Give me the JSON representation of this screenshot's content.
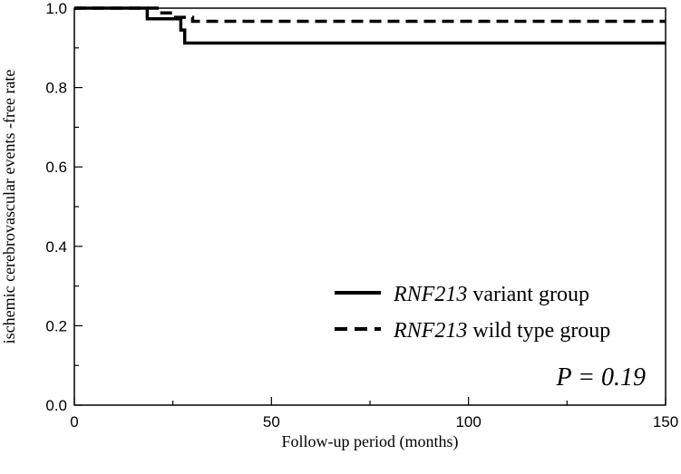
{
  "chart_data": {
    "type": "line",
    "subtype": "kaplan-meier-step",
    "xlabel": "Follow-up period (months)",
    "ylabel": "ischemic cerebrovascular events -free rate",
    "xlim": [
      0,
      150
    ],
    "ylim": [
      0.0,
      1.0
    ],
    "x_ticks": [
      0,
      50,
      100,
      150
    ],
    "x_tick_labels": [
      "0",
      "50",
      "100",
      "150"
    ],
    "y_ticks": [
      0.0,
      0.2,
      0.4,
      0.6,
      0.8,
      1.0
    ],
    "y_tick_labels": [
      "0.0",
      "0.2",
      "0.4",
      "0.6",
      "0.8",
      "1.0"
    ],
    "grid": false,
    "legend_position": "bottom-right",
    "series": [
      {
        "name_italic": "RNF213",
        "name_rest": " variant group",
        "line_style": "solid",
        "color": "#000000",
        "points": [
          [
            0,
            1.0
          ],
          [
            18.5,
            1.0
          ],
          [
            18.5,
            0.973
          ],
          [
            27,
            0.973
          ],
          [
            27,
            0.945
          ],
          [
            28,
            0.945
          ],
          [
            28,
            0.912
          ],
          [
            150,
            0.912
          ]
        ]
      },
      {
        "name_italic": "RNF213",
        "name_rest": " wild type group",
        "line_style": "dashed",
        "color": "#000000",
        "points": [
          [
            0,
            1.0
          ],
          [
            21.5,
            1.0
          ],
          [
            21.5,
            0.988
          ],
          [
            25,
            0.988
          ],
          [
            25,
            0.977
          ],
          [
            30,
            0.977
          ],
          [
            30,
            0.967
          ],
          [
            150,
            0.967
          ]
        ]
      }
    ],
    "annotation": "P = 0.19"
  }
}
